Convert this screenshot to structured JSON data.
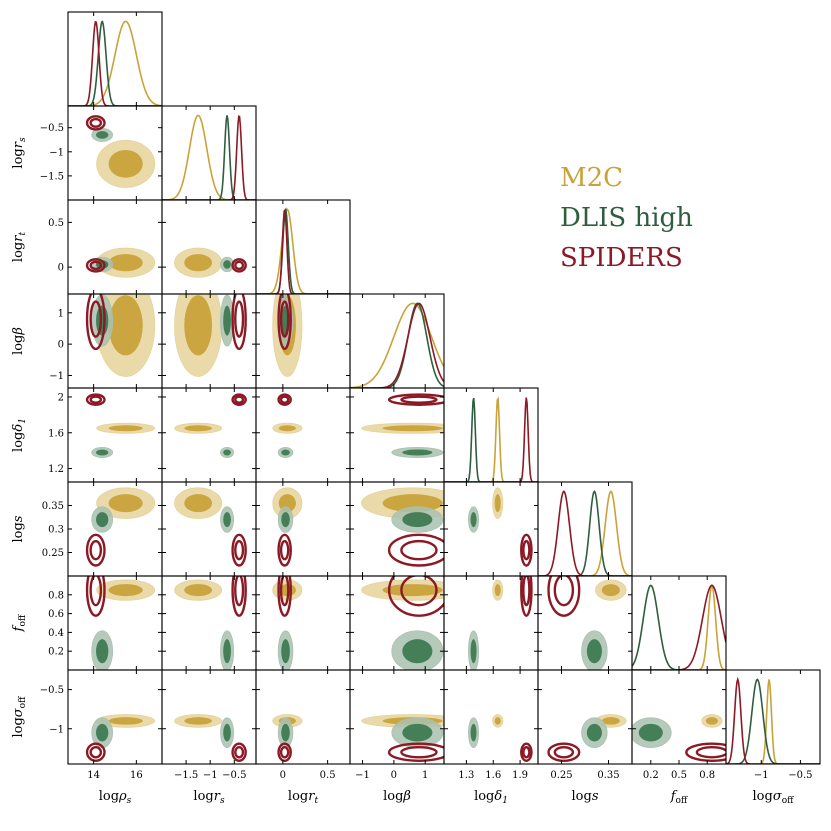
{
  "chart_data": {
    "type": "corner",
    "parameters": [
      {
        "key": "rho",
        "label": "logρs",
        "base": "log",
        "sym": "ρ",
        "sub": "s",
        "range": [
          12.8,
          17.2
        ],
        "ticks": [
          14,
          16
        ]
      },
      {
        "key": "rs",
        "label": "logrs",
        "base": "log",
        "sym": "r",
        "sub": "s",
        "range": [
          -2.0,
          -0.05
        ],
        "ticks": [
          -1.5,
          -1.0,
          -0.5
        ]
      },
      {
        "key": "rt",
        "label": "logrt",
        "base": "log",
        "sym": "r",
        "sub": "t",
        "range": [
          -0.3,
          0.75
        ],
        "ticks": [
          0.0,
          0.5
        ]
      },
      {
        "key": "beta",
        "label": "logβ",
        "base": "log",
        "sym": "β",
        "sub": "",
        "range": [
          -1.4,
          1.6
        ],
        "ticks": [
          -1,
          0,
          1
        ]
      },
      {
        "key": "delta",
        "label": "logδ1",
        "base": "log",
        "sym": "δ",
        "sub": "1",
        "range": [
          1.05,
          2.1
        ],
        "ticks": [
          1.3,
          1.6,
          1.9
        ]
      },
      {
        "key": "s",
        "label": "logs",
        "base": "log",
        "sym": "s",
        "sub": "",
        "range": [
          0.2,
          0.4
        ],
        "ticks": [
          0.25,
          0.35
        ]
      },
      {
        "key": "foff",
        "label": "foff",
        "base": "",
        "sym": "f",
        "sub": "off",
        "range": [
          0.0,
          1.0
        ],
        "ticks": [
          0.2,
          0.5,
          0.8
        ]
      },
      {
        "key": "soff",
        "label": "logσoff",
        "base": "log",
        "sym": "σ",
        "sub": "off",
        "range": [
          -1.45,
          -0.25
        ],
        "ticks": [
          -1.0,
          -0.5
        ]
      }
    ],
    "row_ticks": [
      null,
      [
        -0.5,
        -1.0,
        -1.5
      ],
      [
        0.5,
        0.0
      ],
      [
        1,
        0,
        -1
      ],
      [
        2.0,
        1.6,
        1.2
      ],
      [
        0.35,
        0.3,
        0.25
      ],
      [
        0.8,
        0.6,
        0.4,
        0.2
      ],
      [
        -0.5,
        -1.0
      ]
    ],
    "series": [
      {
        "name": "M2C",
        "color": "#c9a33a",
        "fill_inner": "#c9a33a",
        "fill_outer": "#e6d39b",
        "peaks": {
          "rho": 15.5,
          "rs": -1.25,
          "rt": 0.05,
          "beta": 0.6,
          "delta": 1.65,
          "s": 0.355,
          "foff": 0.85,
          "soff": -0.9
        },
        "widths": {
          "rho": 0.5,
          "rs": 0.18,
          "rt": 0.06,
          "beta": 0.6,
          "delta": 0.02,
          "s": 0.012,
          "foff": 0.04,
          "soff": 0.03
        }
      },
      {
        "name": "DLIS high",
        "color": "#2f5e3f",
        "fill_inner": "#3f7a52",
        "fill_outer": "#a9c1b0",
        "peaks": {
          "rho": 14.4,
          "rs": -0.65,
          "rt": 0.03,
          "beta": 0.75,
          "delta": 1.38,
          "s": 0.32,
          "foff": 0.2,
          "soff": -1.05
        },
        "widths": {
          "rho": 0.18,
          "rs": 0.05,
          "rt": 0.03,
          "beta": 0.3,
          "delta": 0.02,
          "s": 0.01,
          "foff": 0.08,
          "soff": 0.07
        }
      },
      {
        "name": "SPIDERS",
        "color": "#8b1a25",
        "fill_inner": "none",
        "fill_outer": "none",
        "peaks": {
          "rho": 14.1,
          "rs": -0.4,
          "rt": 0.02,
          "beta": 0.8,
          "delta": 1.97,
          "s": 0.255,
          "foff": 0.85,
          "soff": -1.3
        },
        "widths": {
          "rho": 0.15,
          "rs": 0.05,
          "rt": 0.025,
          "beta": 0.35,
          "delta": 0.02,
          "s": 0.012,
          "foff": 0.1,
          "soff": 0.04
        }
      }
    ],
    "legend": {
      "placement": "right"
    }
  }
}
